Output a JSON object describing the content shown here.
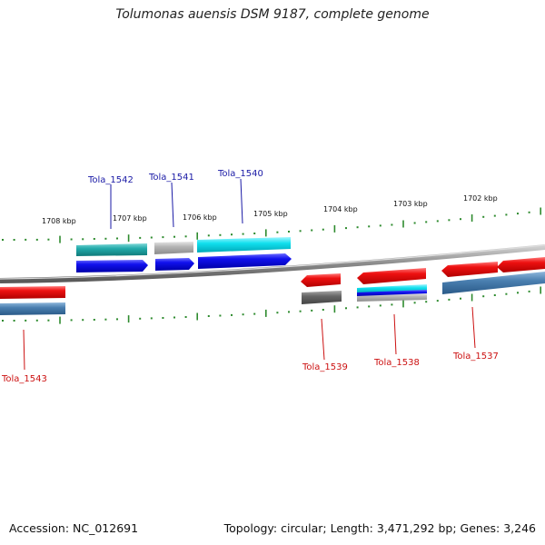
{
  "title": "Tolumonas auensis DSM 9187, complete genome",
  "footer": {
    "accession": "Accession: NC_012691",
    "summary": "Topology: circular; Length: 3,471,292 bp; Genes: 3,246"
  },
  "scale_labels": [
    "1708 kbp",
    "1707 kbp",
    "1706 kbp",
    "1705 kbp",
    "1704 kbp",
    "1703 kbp",
    "1702 kbp"
  ],
  "colors": {
    "forward_label": "#1a1aa6",
    "reverse_label": "#cc1111",
    "backbone": "#8a8a8a",
    "tick": "#2e8b2e",
    "red": "#ee1111",
    "blue": "#1111ee",
    "cyan": "#11ccdd",
    "teal": "#22aaaa",
    "steelblue": "#4a7fb0",
    "gray": "#b0b0b0",
    "darkgray": "#666666"
  },
  "genes": [
    {
      "name": "Tola_1543",
      "strand": "reverse",
      "label_color": "#cc1111"
    },
    {
      "name": "Tola_1542",
      "strand": "forward",
      "label_color": "#1a1aa6"
    },
    {
      "name": "Tola_1541",
      "strand": "forward",
      "label_color": "#1a1aa6"
    },
    {
      "name": "Tola_1540",
      "strand": "forward",
      "label_color": "#1a1aa6"
    },
    {
      "name": "Tola_1539",
      "strand": "reverse",
      "label_color": "#cc1111"
    },
    {
      "name": "Tola_1538",
      "strand": "reverse",
      "label_color": "#cc1111"
    },
    {
      "name": "Tola_1537",
      "strand": "reverse",
      "label_color": "#cc1111"
    }
  ]
}
